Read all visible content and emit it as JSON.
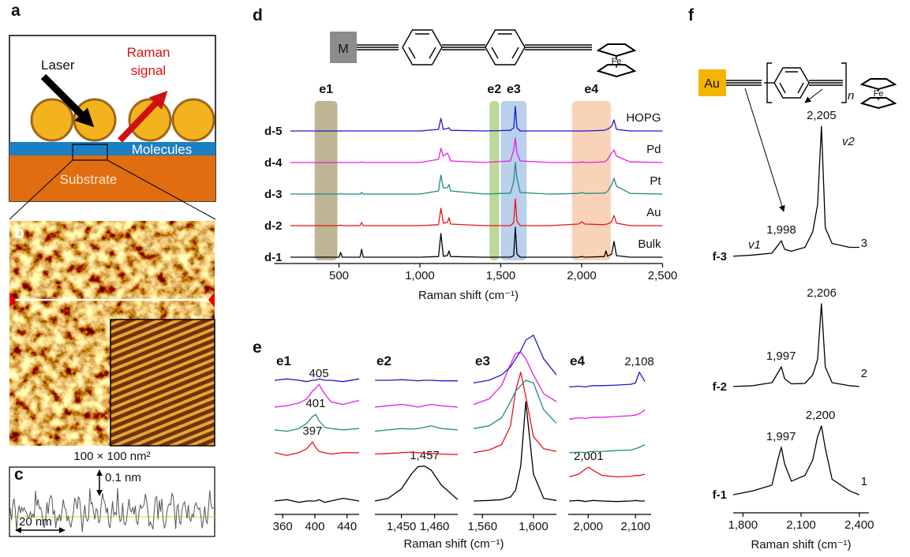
{
  "figure": {
    "a": {
      "panel_label": "a",
      "laser": "Laser",
      "raman_signal": [
        "Raman",
        "signal"
      ],
      "molecules": "Molecules",
      "substrate": "Substrate"
    },
    "b": {
      "panel_label": "b",
      "scale": "100 × 100 nm²"
    },
    "c": {
      "panel_label": "c",
      "height": "0.1 nm",
      "width": "20 nm"
    },
    "e": {
      "panel_label": "e",
      "x_label": "Raman shift (cm⁻¹)"
    }
  },
  "structures": {
    "d": {
      "metal": "M",
      "iron": "Fe"
    },
    "f": {
      "metal": "Au",
      "iron": "Fe",
      "repeat": "n"
    }
  },
  "chart_data": [
    {
      "type": "line",
      "panel_label": "d",
      "x_label": "Raman shift (cm⁻¹)",
      "xlim": [
        100,
        2500
      ],
      "ylim": [
        0,
        4.7
      ],
      "xticks": [
        500,
        {
          "value": 1000,
          "label": "1,000"
        },
        {
          "value": 1500,
          "label": "1,500"
        },
        {
          "value": 2000,
          "label": "2,000"
        },
        {
          "value": 2500,
          "label": "2,500"
        }
      ],
      "bands": [
        {
          "label": "e1",
          "range": [
            350,
            490
          ],
          "color": "#a89c70"
        },
        {
          "label": "e2",
          "range": [
            1430,
            1490
          ],
          "color": "#a5cc7a"
        },
        {
          "label": "e3",
          "range": [
            1500,
            1660
          ],
          "color": "#a3c0e6"
        },
        {
          "label": "e4",
          "range": [
            1940,
            2180
          ],
          "color": "#f7c4a0"
        }
      ],
      "x": [
        200,
        500,
        510,
        520,
        630,
        640,
        650,
        1000,
        1115,
        1130,
        1145,
        1170,
        1180,
        1190,
        1400,
        1560,
        1580,
        1590,
        1600,
        1620,
        1800,
        1980,
        2000,
        2020,
        2140,
        2150,
        2160,
        2185,
        2200,
        2215,
        2300,
        2500
      ],
      "series": [
        {
          "name": "d-1",
          "end_label": "Bulk",
          "color": "#000000",
          "values": [
            0,
            0,
            0.15,
            0,
            0,
            0.25,
            0,
            0,
            0.02,
            0.75,
            0.03,
            0.05,
            0.2,
            0.02,
            0,
            0,
            0.05,
            0.95,
            0.1,
            0,
            0,
            0,
            0.02,
            0,
            0.02,
            0.2,
            0.03,
            0.1,
            0.5,
            0.05,
            0,
            0
          ]
        },
        {
          "name": "d-2",
          "end_label": "Au",
          "color": "#e8141a",
          "values": [
            1,
            1,
            1.02,
            1,
            1,
            1.1,
            1,
            1,
            1.03,
            1.55,
            1.08,
            1.1,
            1.25,
            1.05,
            1,
            1,
            1.1,
            1.85,
            1.15,
            1,
            1,
            1.05,
            1.12,
            1.05,
            1.03,
            1.05,
            1.05,
            1.12,
            1.32,
            1.08,
            1,
            1
          ]
        },
        {
          "name": "d-3",
          "end_label": "Pt",
          "color": "#1e8c84",
          "values": [
            2,
            2,
            2.02,
            2,
            2,
            2.05,
            2,
            2,
            2.1,
            2.6,
            2.2,
            2.2,
            2.3,
            2.1,
            2,
            2.03,
            2.4,
            3,
            2.5,
            2.05,
            2,
            2.02,
            2.05,
            2.02,
            2.03,
            2.05,
            2.08,
            2.3,
            2.5,
            2.25,
            2.02,
            2
          ]
        },
        {
          "name": "d-4",
          "end_label": "Pd",
          "color": "#e61de6",
          "values": [
            3,
            3,
            3,
            3,
            3,
            3.02,
            3,
            3,
            3.1,
            3.45,
            3.2,
            3.3,
            3.2,
            3.05,
            3,
            3.05,
            3.4,
            3.78,
            3.3,
            3.05,
            3,
            3,
            3.02,
            3,
            3.02,
            3.05,
            3.1,
            3.3,
            3.4,
            3.2,
            3.02,
            3
          ]
        },
        {
          "name": "d-5",
          "end_label": "HOPG",
          "color": "#1a1acc",
          "values": [
            4,
            4,
            4,
            4,
            4,
            4,
            4,
            4,
            4.05,
            4.4,
            4.05,
            4.08,
            4.1,
            4.02,
            4,
            4.02,
            4.1,
            4.78,
            4.1,
            4,
            4,
            4,
            4,
            4,
            4.02,
            4.05,
            4.05,
            4.15,
            4.35,
            4.05,
            4,
            4
          ]
        }
      ]
    },
    {
      "type": "line",
      "title": "e1",
      "xlim": [
        350,
        455
      ],
      "ylim": [
        0,
        7
      ],
      "xticks": [
        360,
        400,
        440
      ],
      "x": [
        350,
        365,
        380,
        390,
        397,
        401,
        405,
        412,
        420,
        435,
        455
      ],
      "series": [
        {
          "color": "#000000",
          "values": [
            0.5,
            0.55,
            0.45,
            0.5,
            0.5,
            0.5,
            0.55,
            0.45,
            0.5,
            0.6,
            0.5
          ]
        },
        {
          "color": "#e8141a",
          "peak": 397,
          "values": [
            2.3,
            2.2,
            2.3,
            2.45,
            2.7,
            2.5,
            2.35,
            2.3,
            2.25,
            2.3,
            2.3
          ]
        },
        {
          "color": "#1e8c84",
          "peak": 401,
          "values": [
            3.15,
            3.1,
            3.2,
            3.4,
            3.65,
            3.73,
            3.5,
            3.25,
            3.2,
            3.15,
            3.2
          ]
        },
        {
          "color": "#e61de6",
          "peak": 405,
          "values": [
            4,
            4.05,
            4.15,
            4.3,
            4.6,
            4.7,
            4.85,
            4.5,
            4.2,
            4.1,
            4.25
          ]
        },
        {
          "color": "#1a1acc",
          "values": [
            5,
            5.05,
            5,
            4.95,
            5,
            5,
            5.05,
            5,
            5,
            4.95,
            5.05
          ]
        }
      ]
    },
    {
      "type": "line",
      "title": "e2",
      "xlim": [
        1442,
        1467
      ],
      "ylim": [
        0,
        7
      ],
      "xticks": [
        {
          "value": 1450,
          "label": "1,450"
        },
        {
          "value": 1460,
          "label": "1,460"
        }
      ],
      "x": [
        1442,
        1446,
        1450,
        1453,
        1455,
        1457,
        1459,
        1462,
        1467
      ],
      "series": [
        {
          "color": "#000000",
          "peak": {
            "value": 1457,
            "label": "1,457"
          },
          "values": [
            0.5,
            0.6,
            0.95,
            1.5,
            1.78,
            1.8,
            1.65,
            1.1,
            0.55
          ]
        },
        {
          "color": "#e8141a",
          "values": [
            2.25,
            2.27,
            2.3,
            2.32,
            2.3,
            2.28,
            2.27,
            2.25,
            2.23
          ]
        },
        {
          "color": "#1e8c84",
          "values": [
            3.1,
            3.15,
            3.2,
            3.18,
            3.2,
            3.25,
            3.3,
            3.2,
            3.15
          ]
        },
        {
          "color": "#e61de6",
          "values": [
            4,
            4.05,
            4.1,
            4.05,
            4,
            4.05,
            4.1,
            4.05,
            4
          ]
        },
        {
          "color": "#1a1acc",
          "values": [
            5,
            5,
            5.02,
            5,
            4.98,
            5,
            5,
            4.98,
            4.98
          ]
        }
      ]
    },
    {
      "type": "line",
      "title": "e3",
      "xlim": [
        1553,
        1618
      ],
      "ylim": [
        0,
        7
      ],
      "xticks": [
        {
          "value": 1560,
          "label": "1,560"
        },
        {
          "value": 1600,
          "label": "1,600"
        }
      ],
      "x": [
        1553,
        1565,
        1575,
        1582,
        1586,
        1590,
        1594,
        1600,
        1608,
        1618
      ],
      "series": [
        {
          "color": "#000000",
          "values": [
            0.5,
            0.52,
            0.55,
            0.65,
            0.9,
            1.8,
            4.2,
            1.5,
            0.6,
            0.52
          ]
        },
        {
          "color": "#e8141a",
          "values": [
            2.3,
            2.4,
            2.6,
            3.3,
            4.6,
            5.3,
            4.4,
            2.9,
            2.45,
            2.35
          ]
        },
        {
          "color": "#1e8c84",
          "values": [
            3.2,
            3.3,
            3.6,
            4.2,
            4.6,
            4.8,
            5,
            4.9,
            3.9,
            3.4
          ]
        },
        {
          "color": "#e61de6",
          "values": [
            4.1,
            4.3,
            4.8,
            5.6,
            6,
            6.05,
            5.8,
            5.2,
            4.5,
            4.2
          ]
        },
        {
          "color": "#1a1acc",
          "values": [
            4.9,
            5,
            5.2,
            5.5,
            5.8,
            6.1,
            6.5,
            6.68,
            5.8,
            5.2
          ]
        }
      ]
    },
    {
      "type": "line",
      "title": "e4",
      "xlim": [
        1958,
        2133
      ],
      "ylim": [
        0,
        7
      ],
      "xticks": [
        {
          "value": 2000,
          "label": "2,000"
        },
        {
          "value": 2100,
          "label": "2,100"
        }
      ],
      "x": [
        1960,
        1980,
        1995,
        2001,
        2010,
        2030,
        2060,
        2090,
        2100,
        2108,
        2120
      ],
      "series": [
        {
          "color": "#000000",
          "values": [
            0.5,
            0.52,
            0.48,
            0.5,
            0.52,
            0.5,
            0.48,
            0.5,
            0.52,
            0.5,
            0.5
          ]
        },
        {
          "color": "#e8141a",
          "peak": {
            "value": 2001,
            "label": "2,001"
          },
          "values": [
            1.4,
            1.5,
            1.7,
            1.76,
            1.65,
            1.45,
            1.4,
            1.42,
            1.45,
            1.45,
            1.5
          ]
        },
        {
          "color": "#1e8c84",
          "values": [
            2.3,
            2.32,
            2.3,
            2.33,
            2.35,
            2.35,
            2.38,
            2.4,
            2.45,
            2.5,
            2.6
          ]
        },
        {
          "color": "#e61de6",
          "values": [
            3.55,
            3.6,
            3.58,
            3.6,
            3.62,
            3.62,
            3.65,
            3.68,
            3.7,
            3.75,
            3.9
          ]
        },
        {
          "color": "#1a1acc",
          "peak": {
            "value": 2108,
            "label": "2,108"
          },
          "values": [
            4.75,
            4.78,
            4.75,
            4.78,
            4.8,
            4.8,
            4.82,
            4.85,
            4.9,
            5.3,
            4.95
          ]
        }
      ]
    },
    {
      "type": "line",
      "panel_label": "f",
      "x_label": "Raman shift (cm⁻¹)",
      "xlim": [
        1750,
        2450
      ],
      "ylim": [
        0,
        10
      ],
      "xticks": [
        {
          "value": 1800,
          "label": "1,800"
        },
        {
          "value": 2100,
          "label": "2,100"
        },
        {
          "value": 2400,
          "label": "2,400"
        }
      ],
      "x": [
        1750,
        1850,
        1950,
        1980,
        1998,
        2015,
        2050,
        2120,
        2160,
        2185,
        2205,
        2225,
        2260,
        2350,
        2400
      ],
      "series": [
        {
          "name": "f-1",
          "end_label": 1,
          "color": "#000000",
          "peaks": [
            {
              "value": 1997,
              "label": "1,997"
            },
            {
              "value": 2200,
              "label": "2,200"
            }
          ],
          "values": [
            0.1,
            0.2,
            0.35,
            1,
            1.33,
            0.9,
            0.45,
            0.6,
            1,
            1.6,
            1.88,
            1.3,
            0.5,
            0.2,
            0.1
          ]
        },
        {
          "name": "f-2",
          "end_label": 2,
          "color": "#000000",
          "peaks": [
            {
              "value": 1997,
              "label": "1,997"
            },
            {
              "value": 2206,
              "label": "2,206"
            }
          ],
          "values": [
            2.9,
            2.92,
            3,
            3.25,
            3.41,
            3.1,
            2.97,
            2.98,
            3.2,
            3.6,
            5.04,
            3.4,
            3,
            2.92,
            2.9
          ]
        },
        {
          "name": "f-3",
          "end_label": 3,
          "color": "#000000",
          "peaks": [
            {
              "value": 1998,
              "label": "1,998"
            },
            {
              "value": 2205,
              "label": "2,205"
            }
          ],
          "mode_labels": [
            "v1",
            "v2"
          ],
          "values": [
            6.27,
            6.3,
            6.35,
            6.55,
            6.67,
            6.45,
            6.4,
            6.5,
            6.9,
            7.6,
            9.63,
            7,
            6.6,
            6.5,
            6.5
          ]
        }
      ]
    }
  ]
}
